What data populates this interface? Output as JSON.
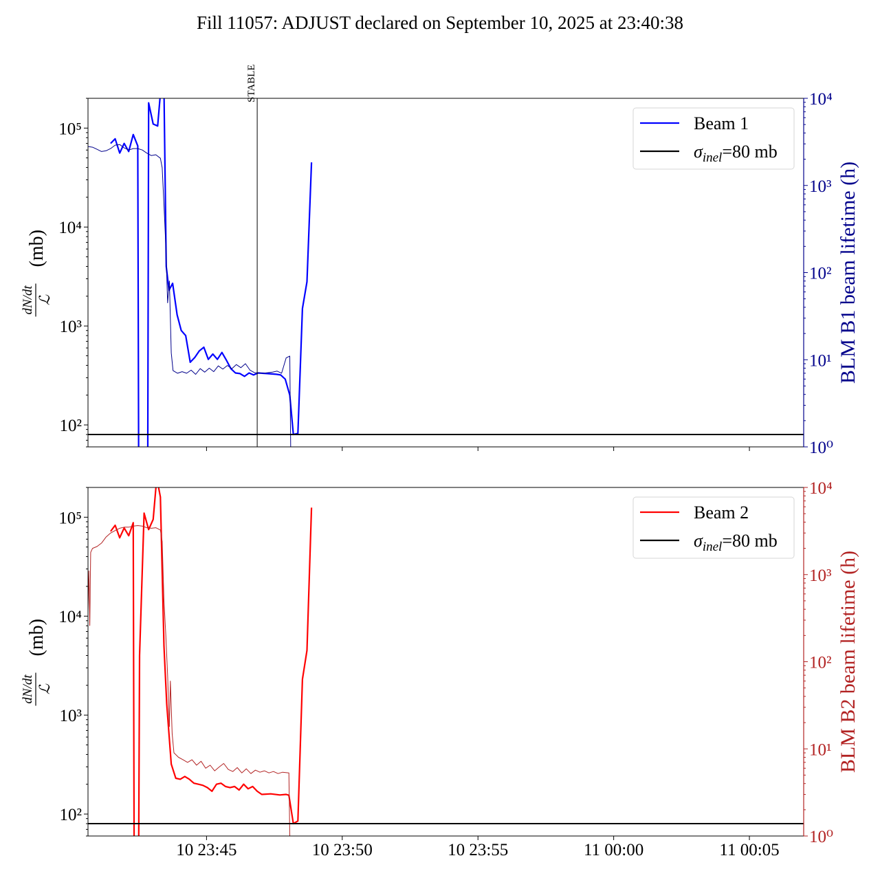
{
  "title": "Fill 11057: ADJUST declared on September 10, 2025 at 23:40:38",
  "colors": {
    "beam1_main": "#0000ff",
    "beam1_thin": "#00008b",
    "beam2_main": "#ff0000",
    "beam2_thin": "#b22222",
    "ref": "#000000",
    "axis1_right": "#00008b",
    "axis2_right": "#b22222"
  },
  "chart_data": [
    {
      "type": "line",
      "yscale": "log",
      "x_unit": "time",
      "xlim": [
        "23:40:38",
        "00:07:00"
      ],
      "x_ticks": [
        {
          "t": "23:45:00",
          "label": "10 23:45"
        },
        {
          "t": "23:50:00",
          "label": "10 23:50"
        },
        {
          "t": "23:55:00",
          "label": "10 23:55"
        },
        {
          "t": "00:00:00",
          "label": "11 00:00"
        },
        {
          "t": "00:05:00",
          "label": "11 00:05"
        }
      ],
      "show_x_tick_labels": false,
      "ylim": [
        60,
        200000
      ],
      "ylabel_numerator": "dN/dt",
      "ylabel_denominator": "ℒ",
      "ylabel_unit": "(mb)",
      "yticks": [
        {
          "v": 100,
          "label": "10²"
        },
        {
          "v": 1000,
          "label": "10³"
        },
        {
          "v": 10000,
          "label": "10⁴"
        },
        {
          "v": 100000,
          "label": "10⁵"
        }
      ],
      "y2lim": [
        1,
        10000
      ],
      "y2label": "BLM B1 beam lifetime (h)",
      "y2ticks": [
        {
          "v": 1,
          "label": "10⁰"
        },
        {
          "v": 10,
          "label": "10¹"
        },
        {
          "v": 100,
          "label": "10²"
        },
        {
          "v": 1000,
          "label": "10³"
        },
        {
          "v": 10000,
          "label": "10⁴"
        }
      ],
      "vline": {
        "t": "23:46:52",
        "label": "STABLE"
      },
      "hline": {
        "value": 80
      },
      "legend": {
        "position": "top-right",
        "entries": [
          {
            "label": "Beam 1",
            "color": "#0000ff"
          },
          {
            "label": "σinel=80 mb",
            "color": "#000000",
            "sigma": true
          }
        ]
      },
      "series": [
        {
          "name": "Beam 1",
          "axis": "left",
          "color": "#0000ff",
          "width": 2.2,
          "points": [
            [
              "23:41:28",
              70000
            ],
            [
              "23:41:38",
              78000
            ],
            [
              "23:41:48",
              56000
            ],
            [
              "23:41:58",
              70000
            ],
            [
              "23:42:08",
              58000
            ],
            [
              "23:42:18",
              86000
            ],
            [
              "23:42:28",
              66000
            ],
            [
              "23:42:30",
              40
            ],
            [
              "23:42:50",
              40
            ],
            [
              "23:42:52",
              180000
            ],
            [
              "23:43:02",
              110000
            ],
            [
              "23:43:12",
              105000
            ],
            [
              "23:43:19",
              250000
            ],
            [
              "23:43:26",
              250000
            ],
            [
              "23:43:31",
              4000
            ],
            [
              "23:43:37",
              2300
            ],
            [
              "23:43:45",
              2700
            ],
            [
              "23:43:55",
              1300
            ],
            [
              "23:44:04",
              900
            ],
            [
              "23:44:14",
              800
            ],
            [
              "23:44:24",
              430
            ],
            [
              "23:44:34",
              480
            ],
            [
              "23:44:44",
              560
            ],
            [
              "23:44:54",
              610
            ],
            [
              "23:45:04",
              460
            ],
            [
              "23:45:14",
              520
            ],
            [
              "23:45:24",
              460
            ],
            [
              "23:45:34",
              540
            ],
            [
              "23:45:44",
              450
            ],
            [
              "23:45:54",
              370
            ],
            [
              "23:46:04",
              335
            ],
            [
              "23:46:14",
              330
            ],
            [
              "23:46:24",
              310
            ],
            [
              "23:46:34",
              335
            ],
            [
              "23:46:44",
              320
            ],
            [
              "23:46:54",
              335
            ],
            [
              "23:47:14",
              330
            ],
            [
              "23:47:34",
              325
            ],
            [
              "23:47:44",
              320
            ],
            [
              "23:47:54",
              290
            ],
            [
              "23:48:04",
              200
            ],
            [
              "23:48:12",
              80
            ],
            [
              "23:48:22",
              82
            ],
            [
              "23:48:32",
              1500
            ],
            [
              "23:48:42",
              2800
            ],
            [
              "23:48:52",
              45000
            ]
          ]
        },
        {
          "name": "BLM B1",
          "axis": "right",
          "color": "#00008b",
          "width": 1,
          "points": [
            [
              "23:40:38",
              2800
            ],
            [
              "23:40:48",
              2750
            ],
            [
              "23:40:58",
              2600
            ],
            [
              "23:41:08",
              2450
            ],
            [
              "23:41:18",
              2500
            ],
            [
              "23:41:28",
              2650
            ],
            [
              "23:41:38",
              2900
            ],
            [
              "23:41:48",
              2950
            ],
            [
              "23:41:58",
              2700
            ],
            [
              "23:42:08",
              2550
            ],
            [
              "23:42:18",
              2650
            ],
            [
              "23:42:28",
              2650
            ],
            [
              "23:42:38",
              2550
            ],
            [
              "23:42:48",
              2350
            ],
            [
              "23:42:58",
              2200
            ],
            [
              "23:43:08",
              2250
            ],
            [
              "23:43:18",
              2050
            ],
            [
              "23:43:22",
              1600
            ],
            [
              "23:43:26",
              600
            ],
            [
              "23:43:30",
              200
            ],
            [
              "23:43:34",
              45
            ],
            [
              "23:43:38",
              80
            ],
            [
              "23:43:42",
              12
            ],
            [
              "23:43:46",
              7.5
            ],
            [
              "23:43:56",
              7.0
            ],
            [
              "23:44:06",
              7.3
            ],
            [
              "23:44:16",
              7.0
            ],
            [
              "23:44:26",
              7.6
            ],
            [
              "23:44:36",
              6.8
            ],
            [
              "23:44:46",
              7.9
            ],
            [
              "23:44:56",
              7.2
            ],
            [
              "23:45:06",
              8.0
            ],
            [
              "23:45:16",
              7.3
            ],
            [
              "23:45:26",
              8.5
            ],
            [
              "23:45:36",
              7.8
            ],
            [
              "23:45:46",
              8.6
            ],
            [
              "23:45:56",
              7.9
            ],
            [
              "23:46:06",
              8.8
            ],
            [
              "23:46:16",
              8.1
            ],
            [
              "23:46:26",
              9.0
            ],
            [
              "23:46:36",
              7.6
            ],
            [
              "23:46:46",
              7.1
            ],
            [
              "23:47:06",
              7.0
            ],
            [
              "23:47:26",
              7.2
            ],
            [
              "23:47:36",
              7.4
            ],
            [
              "23:47:46",
              7.0
            ],
            [
              "23:47:56",
              10.5
            ],
            [
              "23:48:04",
              11.0
            ],
            [
              "23:48:06",
              1.0
            ]
          ]
        }
      ]
    },
    {
      "type": "line",
      "yscale": "log",
      "x_unit": "time",
      "xlim": [
        "23:40:38",
        "00:07:00"
      ],
      "x_ticks": [
        {
          "t": "23:45:00",
          "label": "10 23:45"
        },
        {
          "t": "23:50:00",
          "label": "10 23:50"
        },
        {
          "t": "23:55:00",
          "label": "10 23:55"
        },
        {
          "t": "00:00:00",
          "label": "11 00:00"
        },
        {
          "t": "00:05:00",
          "label": "11 00:05"
        }
      ],
      "show_x_tick_labels": true,
      "ylim": [
        60,
        200000
      ],
      "ylabel_numerator": "dN/dt",
      "ylabel_denominator": "ℒ",
      "ylabel_unit": "(mb)",
      "yticks": [
        {
          "v": 100,
          "label": "10²"
        },
        {
          "v": 1000,
          "label": "10³"
        },
        {
          "v": 10000,
          "label": "10⁴"
        },
        {
          "v": 100000,
          "label": "10⁵"
        }
      ],
      "y2lim": [
        1,
        10000
      ],
      "y2label": "BLM B2 beam lifetime (h)",
      "y2ticks": [
        {
          "v": 1,
          "label": "10⁰"
        },
        {
          "v": 10,
          "label": "10¹"
        },
        {
          "v": 100,
          "label": "10²"
        },
        {
          "v": 1000,
          "label": "10³"
        },
        {
          "v": 10000,
          "label": "10⁴"
        }
      ],
      "hline": {
        "value": 80
      },
      "legend": {
        "position": "top-right",
        "entries": [
          {
            "label": "Beam 2",
            "color": "#ff0000"
          },
          {
            "label": "σinel=80 mb",
            "color": "#000000",
            "sigma": true
          }
        ]
      },
      "series": [
        {
          "name": "Beam 2",
          "axis": "left",
          "color": "#ff0000",
          "width": 2.2,
          "points": [
            [
              "23:41:28",
              72000
            ],
            [
              "23:41:38",
              83000
            ],
            [
              "23:41:48",
              62000
            ],
            [
              "23:41:58",
              78000
            ],
            [
              "23:42:08",
              65000
            ],
            [
              "23:42:18",
              88000
            ],
            [
              "23:42:20",
              40
            ],
            [
              "23:42:30",
              40
            ],
            [
              "23:42:32",
              4000
            ],
            [
              "23:42:42",
              110000
            ],
            [
              "23:42:52",
              75000
            ],
            [
              "23:43:02",
              95000
            ],
            [
              "23:43:10",
              250000
            ],
            [
              "23:43:18",
              160000
            ],
            [
              "23:43:26",
              5000
            ],
            [
              "23:43:32",
              1300
            ],
            [
              "23:43:42",
              320
            ],
            [
              "23:43:52",
              230
            ],
            [
              "23:44:02",
              225
            ],
            [
              "23:44:12",
              240
            ],
            [
              "23:44:22",
              225
            ],
            [
              "23:44:32",
              205
            ],
            [
              "23:44:42",
              200
            ],
            [
              "23:44:52",
              195
            ],
            [
              "23:45:02",
              185
            ],
            [
              "23:45:12",
              170
            ],
            [
              "23:45:22",
              200
            ],
            [
              "23:45:32",
              205
            ],
            [
              "23:45:42",
              190
            ],
            [
              "23:45:52",
              185
            ],
            [
              "23:46:02",
              190
            ],
            [
              "23:46:12",
              175
            ],
            [
              "23:46:22",
              200
            ],
            [
              "23:46:32",
              180
            ],
            [
              "23:46:42",
              190
            ],
            [
              "23:46:52",
              170
            ],
            [
              "23:47:02",
              158
            ],
            [
              "23:47:22",
              160
            ],
            [
              "23:47:42",
              156
            ],
            [
              "23:47:56",
              158
            ],
            [
              "23:48:02",
              155
            ],
            [
              "23:48:12",
              80
            ],
            [
              "23:48:22",
              85
            ],
            [
              "23:48:32",
              2300
            ],
            [
              "23:48:42",
              4500
            ],
            [
              "23:48:52",
              125000
            ]
          ]
        },
        {
          "name": "BLM B2",
          "axis": "right",
          "color": "#b22222",
          "width": 1,
          "points": [
            [
              "23:40:38",
              380
            ],
            [
              "23:40:40",
              1100
            ],
            [
              "23:40:42",
              260
            ],
            [
              "23:40:44",
              1800
            ],
            [
              "23:40:48",
              2000
            ],
            [
              "23:40:58",
              2100
            ],
            [
              "23:41:08",
              2300
            ],
            [
              "23:41:18",
              2700
            ],
            [
              "23:41:28",
              3000
            ],
            [
              "23:41:38",
              3200
            ],
            [
              "23:41:48",
              3400
            ],
            [
              "23:41:58",
              3500
            ],
            [
              "23:42:08",
              3500
            ],
            [
              "23:42:18",
              3600
            ],
            [
              "23:42:28",
              3650
            ],
            [
              "23:42:38",
              3600
            ],
            [
              "23:42:48",
              3450
            ],
            [
              "23:42:58",
              3400
            ],
            [
              "23:43:08",
              3450
            ],
            [
              "23:43:18",
              3250
            ],
            [
              "23:43:22",
              2400
            ],
            [
              "23:43:26",
              500
            ],
            [
              "23:43:30",
              200
            ],
            [
              "23:43:34",
              70
            ],
            [
              "23:43:38",
              18
            ],
            [
              "23:43:40",
              60
            ],
            [
              "23:43:44",
              15
            ],
            [
              "23:43:48",
              9.0
            ],
            [
              "23:43:58",
              8.0
            ],
            [
              "23:44:08",
              7.5
            ],
            [
              "23:44:18",
              7.0
            ],
            [
              "23:44:28",
              7.5
            ],
            [
              "23:44:38",
              6.5
            ],
            [
              "23:44:48",
              7.2
            ],
            [
              "23:44:58",
              6.0
            ],
            [
              "23:45:08",
              6.5
            ],
            [
              "23:45:18",
              5.6
            ],
            [
              "23:45:28",
              6.2
            ],
            [
              "23:45:38",
              6.8
            ],
            [
              "23:45:48",
              5.8
            ],
            [
              "23:45:58",
              5.5
            ],
            [
              "23:46:08",
              6.1
            ],
            [
              "23:46:18",
              5.3
            ],
            [
              "23:46:28",
              5.9
            ],
            [
              "23:46:38",
              5.2
            ],
            [
              "23:46:48",
              5.7
            ],
            [
              "23:46:58",
              5.4
            ],
            [
              "23:47:08",
              5.6
            ],
            [
              "23:47:18",
              5.3
            ],
            [
              "23:47:28",
              5.5
            ],
            [
              "23:47:38",
              5.2
            ],
            [
              "23:47:48",
              5.4
            ],
            [
              "23:48:02",
              5.3
            ],
            [
              "23:48:04",
              1.0
            ]
          ]
        }
      ]
    }
  ]
}
